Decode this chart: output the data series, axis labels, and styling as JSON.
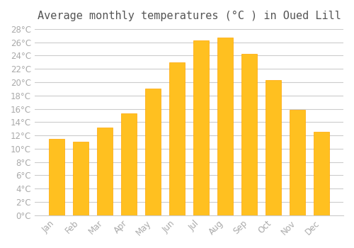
{
  "title": "Average monthly temperatures (°C ) in Oued Lill",
  "months": [
    "Jan",
    "Feb",
    "Mar",
    "Apr",
    "May",
    "Jun",
    "Jul",
    "Aug",
    "Sep",
    "Oct",
    "Nov",
    "Dec"
  ],
  "values": [
    11.5,
    11.0,
    13.2,
    15.3,
    19.0,
    23.0,
    26.3,
    26.7,
    24.3,
    20.3,
    15.8,
    12.5
  ],
  "bar_color": "#FFC020",
  "bar_edge_color": "#FFA500",
  "background_color": "#FFFFFF",
  "grid_color": "#CCCCCC",
  "text_color": "#AAAAAA",
  "title_color": "#555555",
  "ylim": [
    0,
    28
  ],
  "ytick_step": 2,
  "title_fontsize": 11,
  "tick_fontsize": 8.5
}
